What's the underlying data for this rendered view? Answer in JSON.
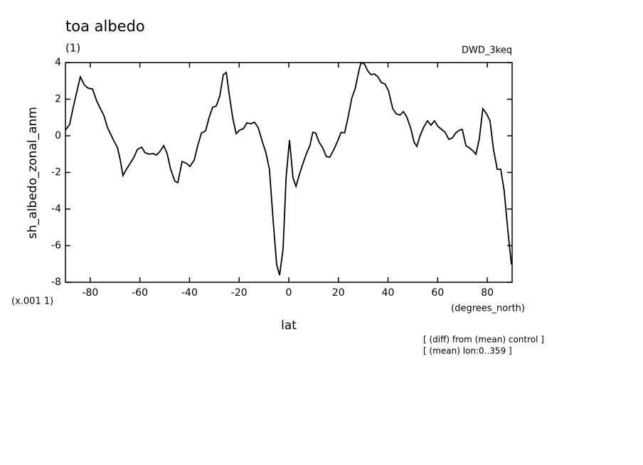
{
  "chart_data": {
    "type": "line",
    "title": "toa albedo",
    "subtitle": "(1)",
    "run_label": "DWD_3keq",
    "ylabel": "sh_albedo_zonal_anm",
    "y_scale_note": "(x.001 1)",
    "xunits": "(degrees_north)",
    "xlabel": "lat",
    "notes": [
      "[ (diff) from (mean) control ]",
      "[ (mean) lon:0..359 ]"
    ],
    "color": "#000000",
    "x": [
      -90,
      -88.3,
      -86.8,
      -84,
      -82.3,
      -80.8,
      -79.1,
      -77.4,
      -74.5,
      -73,
      -70.5,
      -69,
      -67.9,
      -66.8,
      -65.3,
      -63.9,
      -62.5,
      -61,
      -59.3,
      -57.9,
      -56.2,
      -54.7,
      -53.3,
      -51.9,
      -50.4,
      -49,
      -47.6,
      -45.9,
      -44.7,
      -43,
      -41.3,
      -39.8,
      -38.1,
      -36.7,
      -35.2,
      -33.5,
      -32.1,
      -30.7,
      -29.2,
      -27.8,
      -26.4,
      -25.2,
      -24.1,
      -22.6,
      -21.2,
      -19.8,
      -18.3,
      -16.9,
      -15.2,
      -13.8,
      -12.3,
      -10.6,
      -9.2,
      -7.8,
      -6.3,
      -4.9,
      -3.7,
      -2.3,
      -1.1,
      0.3,
      1.7,
      2.9,
      4.3,
      5.7,
      7.1,
      8.5,
      9.7,
      10.8,
      12.2,
      13.7,
      15.1,
      16.5,
      18.2,
      19.6,
      21.1,
      22.5,
      23.9,
      25.4,
      26.8,
      28.2,
      29.1,
      30.5,
      31.9,
      33.1,
      34.5,
      35.9,
      37.3,
      38.8,
      40.2,
      41.9,
      43.3,
      44.8,
      46.2,
      47.6,
      49.1,
      50.5,
      51.6,
      53,
      54.5,
      55.9,
      57.3,
      58.7,
      60.2,
      61.6,
      63,
      64.5,
      65.9,
      67.3,
      68.8,
      69.9,
      71.4,
      72.8,
      74.2,
      75.4,
      76.8,
      78.2,
      79.7,
      81.1,
      82.5,
      84,
      85.4,
      86.8,
      88.3,
      89.7
    ],
    "values": [
      0.31,
      0.62,
      1.6,
      3.22,
      2.76,
      2.6,
      2.56,
      1.9,
      1.1,
      0.43,
      -0.27,
      -0.66,
      -1.32,
      -2.17,
      -1.8,
      -1.5,
      -1.2,
      -0.74,
      -0.62,
      -0.93,
      -1.0,
      -0.97,
      -1.05,
      -0.85,
      -0.54,
      -0.97,
      -1.83,
      -2.48,
      -2.56,
      -1.4,
      -1.5,
      -1.67,
      -1.32,
      -0.54,
      0.15,
      0.27,
      1.0,
      1.55,
      1.63,
      2.17,
      3.34,
      3.46,
      2.37,
      0.97,
      0.12,
      0.31,
      0.39,
      0.7,
      0.66,
      0.74,
      0.43,
      -0.35,
      -0.93,
      -1.83,
      -4.62,
      -7.03,
      -7.61,
      -6.17,
      -2.29,
      -0.23,
      -2.29,
      -2.76,
      -2.1,
      -1.51,
      -0.97,
      -0.54,
      0.19,
      0.16,
      -0.35,
      -0.66,
      -1.13,
      -1.17,
      -0.74,
      -0.31,
      0.19,
      0.16,
      1.01,
      2.06,
      2.6,
      3.53,
      4.0,
      3.92,
      3.53,
      3.34,
      3.38,
      3.22,
      2.91,
      2.83,
      2.45,
      1.48,
      1.2,
      1.13,
      1.32,
      1.01,
      0.43,
      -0.35,
      -0.58,
      0.04,
      0.5,
      0.82,
      0.58,
      0.82,
      0.5,
      0.35,
      0.19,
      -0.19,
      -0.12,
      0.16,
      0.31,
      0.35,
      -0.54,
      -0.66,
      -0.82,
      -1.01,
      -0.16,
      1.48,
      1.2,
      0.82,
      -0.74,
      -1.83,
      -1.83,
      -2.99,
      -5.2,
      -7.03
    ],
    "xlim": [
      -90,
      90
    ],
    "xticks": [
      -80,
      -60,
      -40,
      -20,
      0,
      20,
      40,
      60,
      80
    ],
    "ylim": [
      -8,
      4
    ],
    "yticks": [
      -8,
      -6,
      -4,
      -2,
      0,
      2,
      4
    ]
  }
}
